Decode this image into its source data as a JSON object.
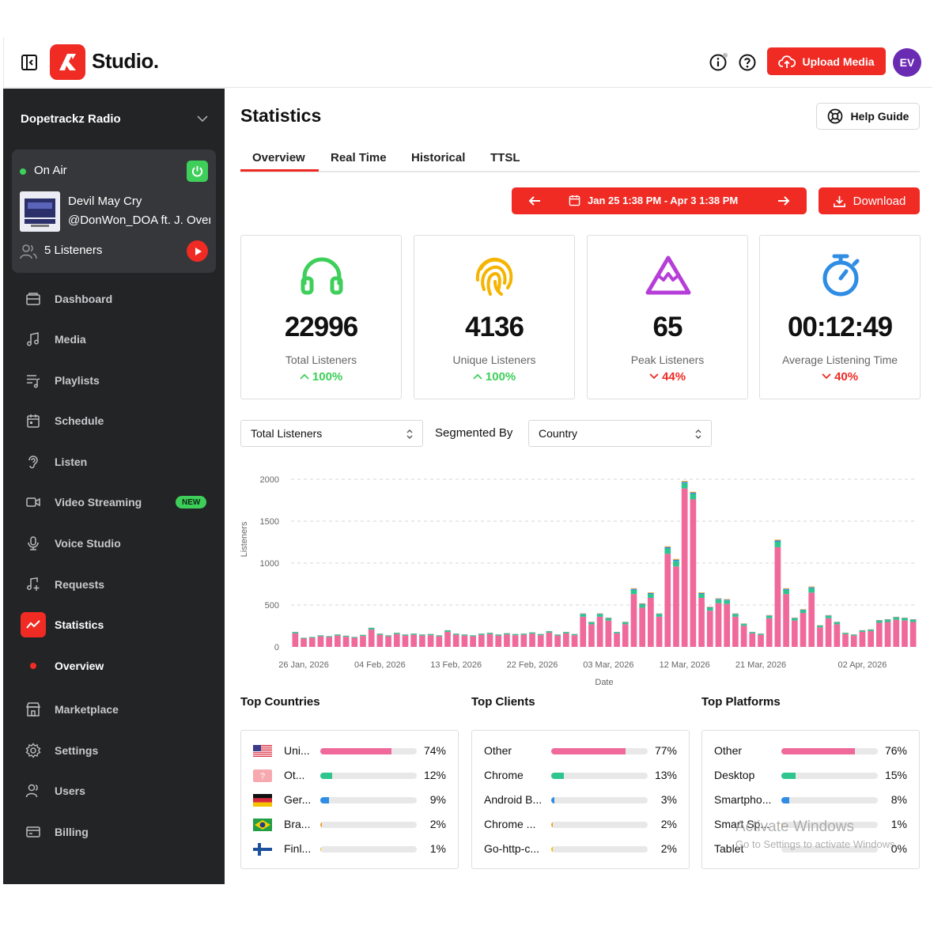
{
  "header": {
    "logo_text": "Studio.",
    "upload_label": "Upload Media",
    "avatar_initials": "EV",
    "icons": [
      "sidebar-collapse-icon",
      "info-icon",
      "help-icon",
      "cloud-upload-icon"
    ]
  },
  "sidebar": {
    "station": "Dopetrackz Radio",
    "on_air": {
      "status": "On Air",
      "track_title": "Devil May Cry",
      "track_artist": "@DonWon_DOA ft. J. Overdose",
      "listeners": "5 Listeners"
    },
    "nav": [
      {
        "label": "Dashboard",
        "icon": "dashboard-icon"
      },
      {
        "label": "Media",
        "icon": "music-note-icon"
      },
      {
        "label": "Playlists",
        "icon": "playlist-icon"
      },
      {
        "label": "Schedule",
        "icon": "calendar-icon"
      },
      {
        "label": "Listen",
        "icon": "ear-icon"
      },
      {
        "label": "Video Streaming",
        "icon": "video-icon",
        "badge": "NEW"
      },
      {
        "label": "Voice Studio",
        "icon": "microphone-icon"
      },
      {
        "label": "Requests",
        "icon": "music-request-icon"
      },
      {
        "label": "Statistics",
        "icon": "statistics-icon",
        "active": true
      },
      {
        "label": "Overview",
        "icon": "dot-icon",
        "sub": true
      },
      {
        "label": "Marketplace",
        "icon": "store-icon"
      },
      {
        "label": "Settings",
        "icon": "gear-icon"
      },
      {
        "label": "Users",
        "icon": "users-icon"
      },
      {
        "label": "Billing",
        "icon": "billing-icon"
      }
    ]
  },
  "main": {
    "title": "Statistics",
    "help_label": "Help Guide",
    "tabs": [
      "Overview",
      "Real Time",
      "Historical",
      "TTSL"
    ],
    "active_tab": "Overview",
    "date_range": "Jan 25 1:38 PM - Apr 3 1:38 PM",
    "download_label": "Download",
    "stats": [
      {
        "value": "22996",
        "label": "Total Listeners",
        "change": "100%",
        "direction": "up",
        "color": "#3ecf5a",
        "icon": "headphones-icon"
      },
      {
        "value": "4136",
        "label": "Unique Listeners",
        "change": "100%",
        "direction": "up",
        "color": "#f5b400",
        "icon": "fingerprint-icon"
      },
      {
        "value": "65",
        "label": "Peak Listeners",
        "change": "44%",
        "direction": "down",
        "color": "#b63ed8",
        "icon": "mountain-icon"
      },
      {
        "value": "00:12:49",
        "label": "Average Listening Time",
        "change": "40%",
        "direction": "down",
        "color": "#2f8de4",
        "icon": "stopwatch-icon"
      }
    ],
    "metric_select": "Total Listeners",
    "segmented_by_label": "Segmented By",
    "segment_select": "Country"
  },
  "chart_data": {
    "type": "bar",
    "stacked": true,
    "xlabel": "Date",
    "ylabel": "Listeners",
    "ylim": [
      0,
      2000
    ],
    "yticks": [
      0,
      500,
      1000,
      1500,
      2000
    ],
    "xtick_labels": [
      "26 Jan, 2026",
      "04 Feb, 2026",
      "13 Feb, 2026",
      "22 Feb, 2026",
      "03 Mar, 2026",
      "12 Mar, 2026",
      "21 Mar, 2026",
      "02 Apr, 2026"
    ],
    "xtick_indices": [
      1,
      10,
      19,
      28,
      37,
      46,
      55,
      67
    ],
    "series_colors": [
      "#ef6a9a",
      "#2ec58f",
      "#2f8de4",
      "#f0a030"
    ],
    "totals": [
      180,
      110,
      120,
      140,
      130,
      150,
      135,
      120,
      145,
      230,
      160,
      140,
      170,
      150,
      160,
      150,
      155,
      140,
      200,
      160,
      150,
      140,
      160,
      170,
      150,
      165,
      155,
      160,
      175,
      155,
      190,
      150,
      180,
      155,
      400,
      300,
      400,
      350,
      180,
      300,
      700,
      520,
      650,
      400,
      1200,
      1050,
      1980,
      1850,
      650,
      480,
      580,
      570,
      400,
      280,
      180,
      160,
      380,
      1280,
      700,
      350,
      450,
      720,
      260,
      380,
      300,
      170,
      150,
      200,
      210,
      320,
      330,
      360,
      350,
      330
    ]
  },
  "top_countries": {
    "title": "Top Countries",
    "rows": [
      {
        "name": "Uni...",
        "pct": "74%",
        "value": 74,
        "color": "#ef6a9a",
        "flag": "us-flag-icon"
      },
      {
        "name": "Ot...",
        "pct": "12%",
        "value": 12,
        "color": "#2ec58f",
        "flag": "unknown-flag-icon"
      },
      {
        "name": "Ger...",
        "pct": "9%",
        "value": 9,
        "color": "#2f8de4",
        "flag": "germany-flag-icon"
      },
      {
        "name": "Bra...",
        "pct": "2%",
        "value": 2,
        "color": "#f0a030",
        "flag": "brazil-flag-icon"
      },
      {
        "name": "Finl...",
        "pct": "1%",
        "value": 1,
        "color": "#f5c400",
        "flag": "finland-flag-icon"
      }
    ]
  },
  "top_clients": {
    "title": "Top Clients",
    "rows": [
      {
        "name": "Other",
        "pct": "77%",
        "value": 77,
        "color": "#ef6a9a"
      },
      {
        "name": "Chrome",
        "pct": "13%",
        "value": 13,
        "color": "#2ec58f"
      },
      {
        "name": "Android B...",
        "pct": "3%",
        "value": 3,
        "color": "#2f8de4"
      },
      {
        "name": "Chrome ...",
        "pct": "2%",
        "value": 2,
        "color": "#f0a030"
      },
      {
        "name": "Go-http-c...",
        "pct": "2%",
        "value": 2,
        "color": "#f5c400"
      }
    ]
  },
  "top_platforms": {
    "title": "Top Platforms",
    "rows": [
      {
        "name": "Other",
        "pct": "76%",
        "value": 76,
        "color": "#ef6a9a"
      },
      {
        "name": "Desktop",
        "pct": "15%",
        "value": 15,
        "color": "#2ec58f"
      },
      {
        "name": "Smartpho...",
        "pct": "8%",
        "value": 8,
        "color": "#2f8de4"
      },
      {
        "name": "Smart Sp...",
        "pct": "1%",
        "value": 1,
        "color": "#f0a030"
      },
      {
        "name": "Tablet",
        "pct": "0%",
        "value": 0,
        "color": "#f5c400"
      }
    ]
  },
  "watermark": {
    "line1": "Activate Windows",
    "line2": "Go to Settings to activate Windows."
  }
}
